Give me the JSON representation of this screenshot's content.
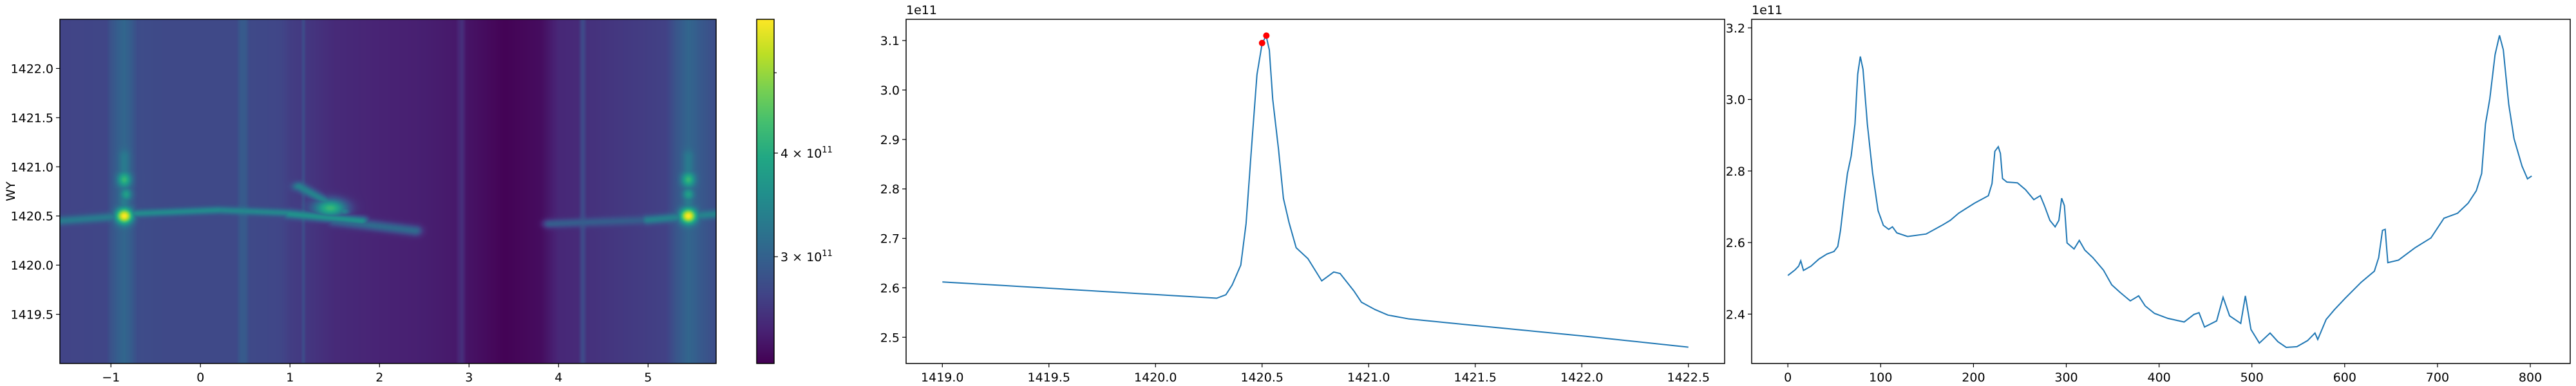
{
  "chart_data": [
    {
      "type": "heatmap",
      "xlabel": "",
      "ylabel": "WY",
      "xlim": [
        -1.57,
        5.76
      ],
      "ylim": [
        1419.0,
        1422.5
      ],
      "xticks": [
        {
          "value": -1,
          "label": "−1"
        },
        {
          "value": 0,
          "label": "0"
        },
        {
          "value": 1,
          "label": "1"
        },
        {
          "value": 2,
          "label": "2"
        },
        {
          "value": 3,
          "label": "3"
        },
        {
          "value": 4,
          "label": "4"
        },
        {
          "value": 5,
          "label": "5"
        }
      ],
      "yticks": [
        {
          "value": 1419.5,
          "label": "1419.5"
        },
        {
          "value": 1420.0,
          "label": "1420.0"
        },
        {
          "value": 1420.5,
          "label": "1420.5"
        },
        {
          "value": 1421.0,
          "label": "1421.0"
        },
        {
          "value": 1421.5,
          "label": "1421.5"
        },
        {
          "value": 1422.0,
          "label": "1422.0"
        }
      ],
      "colorbar": {
        "colormap": "viridis",
        "scale": "log",
        "clim": [
          223000000000.0,
          580000000000.0
        ],
        "ticks": [
          {
            "value": 300000000000.0,
            "base": "3 × 10",
            "exponent": "11"
          },
          {
            "value": 400000000000.0,
            "base": "4 × 10",
            "exponent": "11"
          },
          {
            "value": 500000000000.0,
            "base": "",
            "exponent": ""
          }
        ]
      },
      "value_unit_scale": 100000000000.0,
      "background_columns": [
        [
          -1.57,
          2.7
        ],
        [
          -1.05,
          2.72
        ],
        [
          -1.0,
          2.85
        ],
        [
          -0.9,
          3.0
        ],
        [
          -0.85,
          3.05
        ],
        [
          -0.78,
          2.95
        ],
        [
          -0.7,
          2.78
        ],
        [
          -0.4,
          2.75
        ],
        [
          0.4,
          2.75
        ],
        [
          0.45,
          2.92
        ],
        [
          0.5,
          2.92
        ],
        [
          0.55,
          2.75
        ],
        [
          0.9,
          2.72
        ],
        [
          1.0,
          2.65
        ],
        [
          1.12,
          2.62
        ],
        [
          1.15,
          2.8
        ],
        [
          1.18,
          2.6
        ],
        [
          1.5,
          2.5
        ],
        [
          2.0,
          2.45
        ],
        [
          2.5,
          2.42
        ],
        [
          2.85,
          2.38
        ],
        [
          2.92,
          2.55
        ],
        [
          2.97,
          2.35
        ],
        [
          3.4,
          2.24
        ],
        [
          3.8,
          2.3
        ],
        [
          4.0,
          2.48
        ],
        [
          4.22,
          2.5
        ],
        [
          4.27,
          2.78
        ],
        [
          4.32,
          2.55
        ],
        [
          4.8,
          2.62
        ],
        [
          5.2,
          2.68
        ],
        [
          5.3,
          2.85
        ],
        [
          5.45,
          3.05
        ],
        [
          5.6,
          2.9
        ],
        [
          5.76,
          2.78
        ]
      ],
      "features": [
        {
          "from": [
            -0.85,
            1420.5
          ],
          "to": [
            -0.85,
            1421.1
          ],
          "value": 3.3,
          "spread": [
            0.04,
            0.05
          ]
        },
        {
          "from": [
            -1.57,
            1420.45
          ],
          "to": [
            -0.85,
            1420.5
          ],
          "value": 3.3,
          "spread": [
            0.05,
            0.03
          ]
        },
        {
          "from": [
            -0.85,
            1420.52
          ],
          "to": [
            0.2,
            1420.56
          ],
          "value": 3.5,
          "spread": [
            0.05,
            0.025
          ]
        },
        {
          "from": [
            0.2,
            1420.56
          ],
          "to": [
            1.0,
            1420.53
          ],
          "value": 3.45,
          "spread": [
            0.05,
            0.025
          ]
        },
        {
          "from": [
            1.0,
            1420.52
          ],
          "to": [
            1.8,
            1420.45
          ],
          "value": 3.6,
          "spread": [
            0.05,
            0.03
          ]
        },
        {
          "from": [
            1.1,
            1420.8
          ],
          "to": [
            1.6,
            1420.55
          ],
          "value": 3.4,
          "spread": [
            0.05,
            0.03
          ]
        },
        {
          "from": [
            1.5,
            1420.45
          ],
          "to": [
            2.4,
            1420.35
          ],
          "value": 3.1,
          "spread": [
            0.05,
            0.035
          ]
        },
        {
          "from": [
            1.45,
            1420.58
          ],
          "to": [
            1.45,
            1420.58
          ],
          "value": 4.2,
          "spread": [
            0.12,
            0.06
          ]
        },
        {
          "from": [
            -0.85,
            1420.5
          ],
          "to": [
            -0.85,
            1420.5
          ],
          "value": 5.8,
          "spread": [
            0.06,
            0.05
          ]
        },
        {
          "from": [
            -0.85,
            1420.87
          ],
          "to": [
            -0.85,
            1420.87
          ],
          "value": 4.2,
          "spread": [
            0.05,
            0.05
          ]
        },
        {
          "from": [
            -0.83,
            1420.72
          ],
          "to": [
            -0.83,
            1420.72
          ],
          "value": 3.8,
          "spread": [
            0.04,
            0.04
          ]
        },
        {
          "from": [
            3.9,
            1420.42
          ],
          "to": [
            5.0,
            1420.46
          ],
          "value": 2.95,
          "spread": [
            0.05,
            0.03
          ]
        },
        {
          "from": [
            5.0,
            1420.46
          ],
          "to": [
            5.76,
            1420.52
          ],
          "value": 3.4,
          "spread": [
            0.05,
            0.03
          ]
        },
        {
          "from": [
            5.45,
            1420.5
          ],
          "to": [
            5.45,
            1421.1
          ],
          "value": 3.3,
          "spread": [
            0.04,
            0.05
          ]
        },
        {
          "from": [
            5.45,
            1420.5
          ],
          "to": [
            5.45,
            1420.5
          ],
          "value": 5.8,
          "spread": [
            0.06,
            0.05
          ]
        },
        {
          "from": [
            5.45,
            1420.87
          ],
          "to": [
            5.45,
            1420.87
          ],
          "value": 4.2,
          "spread": [
            0.05,
            0.05
          ]
        },
        {
          "from": [
            5.45,
            1420.72
          ],
          "to": [
            5.45,
            1420.72
          ],
          "value": 3.8,
          "spread": [
            0.04,
            0.04
          ]
        }
      ]
    },
    {
      "type": "line",
      "offset_text": "1e11",
      "xlim": [
        1418.83,
        1422.67
      ],
      "ylim": [
        2.447,
        3.143
      ],
      "xticks": [
        {
          "value": 1419.0,
          "label": "1419.0"
        },
        {
          "value": 1419.5,
          "label": "1419.5"
        },
        {
          "value": 1420.0,
          "label": "1420.0"
        },
        {
          "value": 1420.5,
          "label": "1420.5"
        },
        {
          "value": 1421.0,
          "label": "1421.0"
        },
        {
          "value": 1421.5,
          "label": "1421.5"
        },
        {
          "value": 1422.0,
          "label": "1422.0"
        },
        {
          "value": 1422.5,
          "label": "1422.5"
        }
      ],
      "yticks": [
        {
          "value": 2.5,
          "label": "2.5"
        },
        {
          "value": 2.6,
          "label": "2.6"
        },
        {
          "value": 2.7,
          "label": "2.7"
        },
        {
          "value": 2.8,
          "label": "2.8"
        },
        {
          "value": 2.9,
          "label": "2.9"
        },
        {
          "value": 3.0,
          "label": "3.0"
        },
        {
          "value": 3.1,
          "label": "3.1"
        }
      ],
      "line_color": "#1f77b4",
      "x": [
        1419.0,
        1420.287,
        1420.33,
        1420.36,
        1420.4,
        1420.425,
        1420.45,
        1420.476,
        1420.5,
        1420.519,
        1420.534,
        1420.55,
        1420.577,
        1420.6,
        1420.627,
        1420.66,
        1420.715,
        1420.78,
        1420.836,
        1420.866,
        1420.93,
        1420.966,
        1421.03,
        1421.09,
        1421.19,
        1421.52,
        1422.02,
        1422.5
      ],
      "y": [
        2.612,
        2.579,
        2.586,
        2.606,
        2.646,
        2.73,
        2.881,
        3.031,
        3.094,
        3.11,
        3.081,
        2.981,
        2.881,
        2.781,
        2.731,
        2.681,
        2.659,
        2.614,
        2.632,
        2.629,
        2.594,
        2.571,
        2.556,
        2.545,
        2.537,
        2.523,
        2.502,
        2.48
      ],
      "markers": {
        "color": "#ff0000",
        "points": [
          [
            1420.5,
            3.095
          ],
          [
            1420.52,
            3.11
          ]
        ]
      }
    },
    {
      "type": "line",
      "offset_text": "1e11",
      "xlim": [
        -39,
        843
      ],
      "ylim": [
        2.262,
        3.224
      ],
      "xticks": [
        {
          "value": 0,
          "label": "0"
        },
        {
          "value": 100,
          "label": "100"
        },
        {
          "value": 200,
          "label": "200"
        },
        {
          "value": 300,
          "label": "300"
        },
        {
          "value": 400,
          "label": "400"
        },
        {
          "value": 500,
          "label": "500"
        },
        {
          "value": 600,
          "label": "600"
        },
        {
          "value": 700,
          "label": "700"
        },
        {
          "value": 800,
          "label": "800"
        }
      ],
      "yticks": [
        {
          "value": 2.4,
          "label": "2.4"
        },
        {
          "value": 2.6,
          "label": "2.6"
        },
        {
          "value": 2.8,
          "label": "2.8"
        },
        {
          "value": 3.0,
          "label": "3.0"
        },
        {
          "value": 3.2,
          "label": "3.2"
        }
      ],
      "line_color": "#1f77b4",
      "x": [
        0,
        7.5,
        11.6,
        13.9,
        16.8,
        24.9,
        33.5,
        42.2,
        49.7,
        53.8,
        56.7,
        60.7,
        64.2,
        68.2,
        72.3,
        75.2,
        78.1,
        81,
        85.6,
        91.4,
        97.2,
        102.9,
        108.7,
        112.7,
        117.4,
        129,
        149,
        166,
        175,
        184,
        201,
        216,
        220,
        223,
        226.7,
        229,
        231.3,
        236,
        247.4,
        256,
        265,
        272,
        276.5,
        282.3,
        288,
        292,
        295,
        298,
        300.8,
        308.4,
        314,
        320,
        328.6,
        340,
        349,
        357.8,
        369,
        378,
        385,
        395,
        409.5,
        427,
        437.5,
        443,
        449,
        462,
        469,
        476,
        488,
        493,
        499,
        508,
        519.6,
        528,
        537,
        548.5,
        560,
        568,
        571,
        580,
        588.8,
        600.4,
        617.7,
        632,
        636.6,
        640.7,
        643.6,
        646.5,
        658,
        675.5,
        693,
        707,
        721.7,
        733,
        741.8,
        747.6,
        751.7,
        756.3,
        762,
        766.8,
        770.9,
        776.7,
        782.5,
        791,
        797,
        801.5
      ],
      "y": [
        2.508,
        2.523,
        2.534,
        2.549,
        2.522,
        2.534,
        2.554,
        2.568,
        2.575,
        2.589,
        2.634,
        2.724,
        2.793,
        2.842,
        2.931,
        3.07,
        3.12,
        3.084,
        2.931,
        2.793,
        2.689,
        2.648,
        2.637,
        2.644,
        2.627,
        2.617,
        2.624,
        2.648,
        2.662,
        2.682,
        2.71,
        2.731,
        2.765,
        2.855,
        2.868,
        2.849,
        2.779,
        2.769,
        2.767,
        2.748,
        2.72,
        2.731,
        2.703,
        2.662,
        2.644,
        2.662,
        2.724,
        2.703,
        2.599,
        2.582,
        2.606,
        2.579,
        2.558,
        2.523,
        2.482,
        2.461,
        2.437,
        2.451,
        2.423,
        2.402,
        2.388,
        2.378,
        2.399,
        2.404,
        2.364,
        2.381,
        2.447,
        2.395,
        2.374,
        2.451,
        2.357,
        2.319,
        2.347,
        2.323,
        2.307,
        2.309,
        2.326,
        2.347,
        2.329,
        2.385,
        2.412,
        2.444,
        2.489,
        2.52,
        2.558,
        2.634,
        2.637,
        2.544,
        2.551,
        2.585,
        2.613,
        2.668,
        2.682,
        2.71,
        2.745,
        2.793,
        2.931,
        3.001,
        3.125,
        3.179,
        3.139,
        2.987,
        2.89,
        2.814,
        2.778,
        2.786
      ]
    }
  ]
}
